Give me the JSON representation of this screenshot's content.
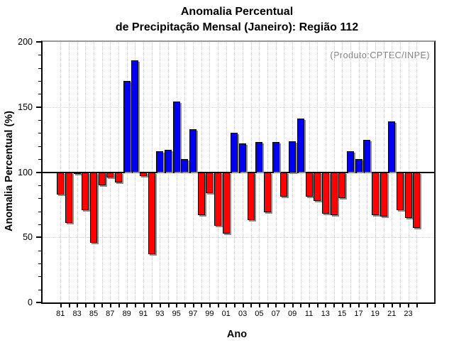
{
  "figure": {
    "title_line1": "Anomalia Percentual",
    "title_line2": "de Precipitação Mensal (Janeiro): Região 112",
    "annotation": "(Produto:CPTEC/INPE)",
    "xlabel": "Ano",
    "ylabel": "Anomalia Percentual (%)"
  },
  "chart_data": {
    "type": "bar",
    "title": "Anomalia Percentual de Precipitação Mensal (Janeiro): Região 112",
    "annotation": "(Produto:CPTEC/INPE)",
    "xlabel": "Ano",
    "ylabel": "Anomalia Percentual (%)",
    "ylim": [
      0,
      200
    ],
    "yticks": [
      0,
      50,
      100,
      150,
      200
    ],
    "y_minor_tick_step": 10,
    "baseline": 100,
    "dotted_hgridlines": [
      50,
      150
    ],
    "vertical_grid": "dotted line at every year",
    "legend_position": "none",
    "colors": {
      "above_baseline": "#0000f0",
      "below_baseline": "#ff0000",
      "bar_outline": "#000000",
      "bar_shadow": "#8c8c8c",
      "annotation_text": "#808080",
      "gridline": "#d2d2d2"
    },
    "xtick_labels": [
      "81",
      "83",
      "85",
      "87",
      "89",
      "91",
      "93",
      "95",
      "97",
      "99",
      "01",
      "03",
      "05",
      "07",
      "09",
      "11",
      "13",
      "15",
      "17",
      "19",
      "21",
      "23"
    ],
    "years": [
      1981,
      1982,
      1983,
      1984,
      1985,
      1986,
      1987,
      1988,
      1989,
      1990,
      1991,
      1992,
      1993,
      1994,
      1995,
      1996,
      1997,
      1998,
      1999,
      2000,
      2001,
      2002,
      2003,
      2004,
      2005,
      2006,
      2007,
      2008,
      2009,
      2010,
      2011,
      2012,
      2013,
      2014,
      2015,
      2016,
      2017,
      2018,
      2019,
      2020,
      2021,
      2022,
      2023,
      2024
    ],
    "values": [
      83,
      61,
      99,
      71,
      46,
      90,
      96,
      92,
      170,
      186,
      97,
      37,
      116,
      117,
      154,
      110,
      133,
      67,
      84,
      59,
      53,
      130,
      122,
      63,
      123,
      69,
      123,
      81,
      124,
      141,
      81,
      78,
      68,
      67,
      80,
      116,
      110,
      125,
      67,
      66,
      139,
      71,
      65,
      57
    ]
  }
}
